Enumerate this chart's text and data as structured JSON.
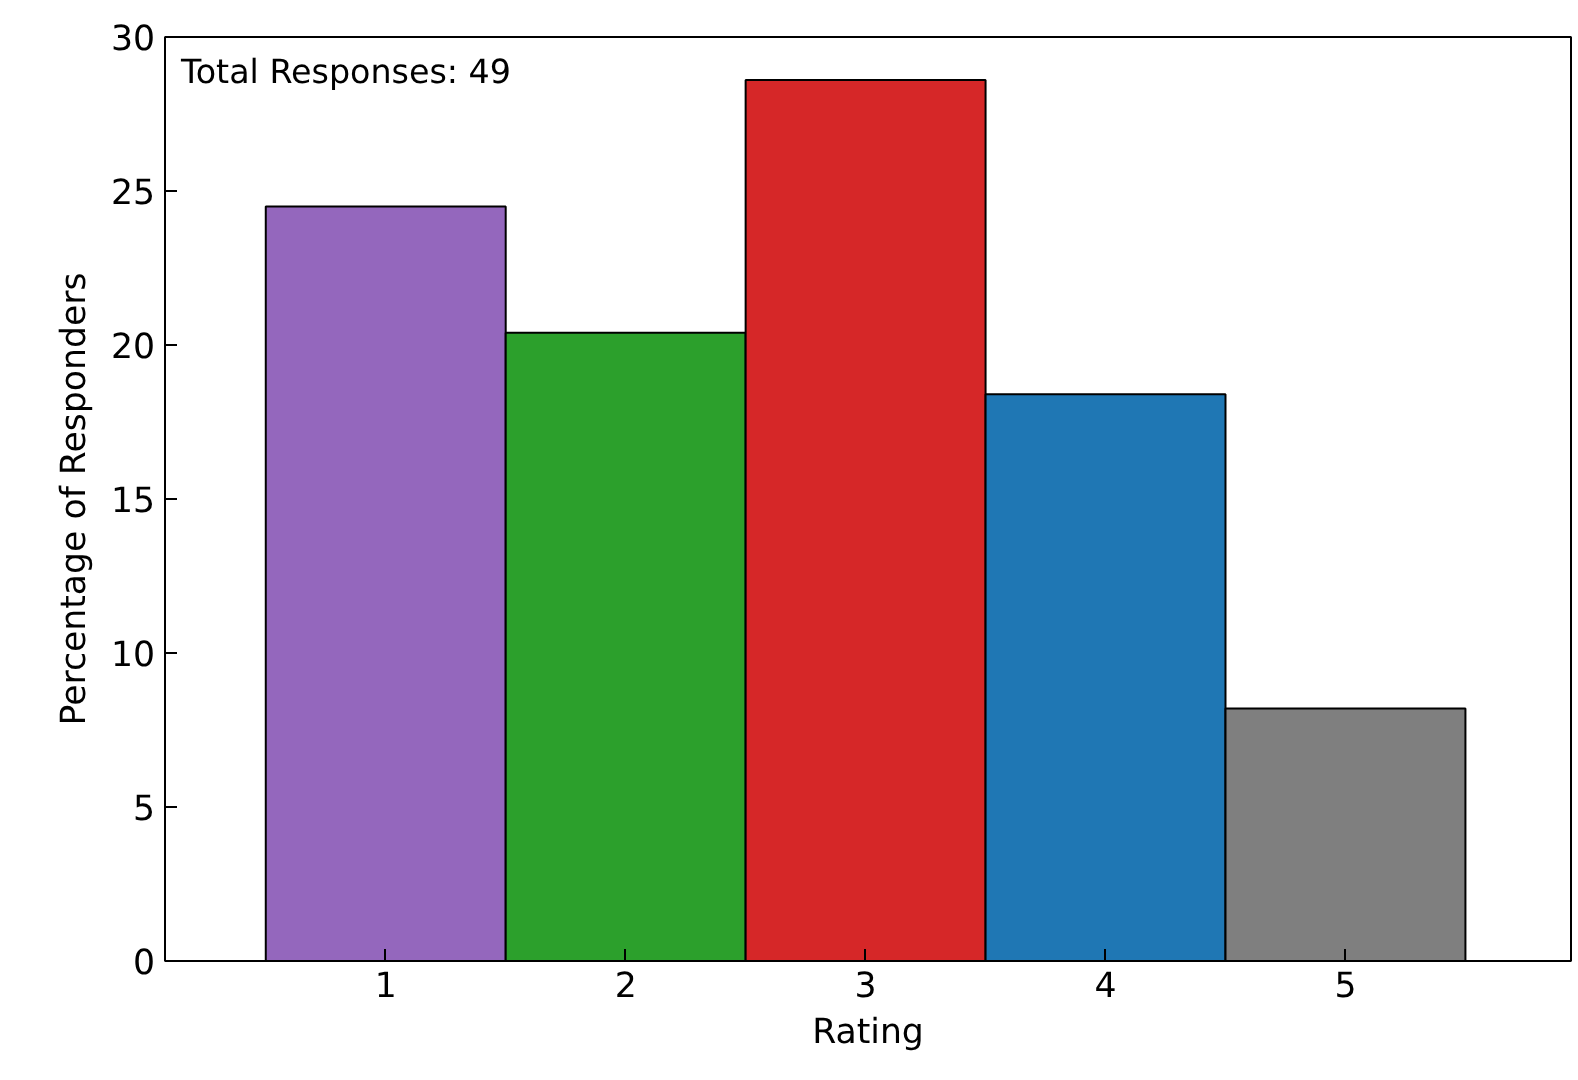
{
  "chart_data": {
    "type": "bar",
    "xlabel": "Rating",
    "ylabel": "Percentage of Responders",
    "categories": [
      "1",
      "2",
      "3",
      "4",
      "5"
    ],
    "values": [
      24.5,
      20.4,
      28.6,
      18.4,
      8.2
    ],
    "colors": [
      "#9467bd",
      "#2ca02c",
      "#d62728",
      "#1f77b4",
      "#7f7f7f"
    ],
    "ylim": [
      0,
      30
    ],
    "yticks": [
      0,
      5,
      10,
      15,
      20,
      25,
      30
    ],
    "annotations": [
      "Total Responses: 49"
    ],
    "grid": false
  }
}
